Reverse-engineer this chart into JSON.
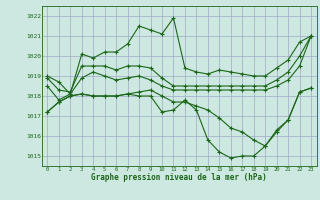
{
  "hours": [
    0,
    1,
    2,
    3,
    4,
    5,
    6,
    7,
    8,
    9,
    10,
    11,
    12,
    13,
    14,
    15,
    16,
    17,
    18,
    19,
    20,
    21,
    22,
    23
  ],
  "line_upper": [
    1019.0,
    1018.7,
    1018.1,
    1020.1,
    1019.9,
    1020.2,
    1020.2,
    1020.6,
    1021.5,
    1021.3,
    1021.1,
    1021.9,
    1019.4,
    1019.2,
    1019.1,
    1019.3,
    1019.2,
    1019.1,
    1019.0,
    1019.0,
    1019.4,
    1019.8,
    1020.7,
    1021.0
  ],
  "line_mid_upper": [
    1018.9,
    1018.3,
    1018.2,
    1019.5,
    1019.5,
    1019.5,
    1019.3,
    1019.5,
    1019.5,
    1019.4,
    1018.9,
    1018.5,
    1018.5,
    1018.5,
    1018.5,
    1018.5,
    1018.5,
    1018.5,
    1018.5,
    1018.5,
    1018.8,
    1019.2,
    1020.0,
    1021.0
  ],
  "line_mean": [
    1018.5,
    1017.8,
    1018.1,
    1018.9,
    1019.2,
    1019.0,
    1018.8,
    1018.9,
    1019.0,
    1018.8,
    1018.5,
    1018.3,
    1018.3,
    1018.3,
    1018.3,
    1018.3,
    1018.3,
    1018.3,
    1018.3,
    1018.3,
    1018.5,
    1018.8,
    1019.5,
    1021.0
  ],
  "line_mid_lower": [
    1017.2,
    1017.7,
    1018.0,
    1018.1,
    1018.0,
    1018.0,
    1018.0,
    1018.1,
    1018.2,
    1018.3,
    1018.0,
    1017.7,
    1017.7,
    1017.5,
    1017.3,
    1016.9,
    1016.4,
    1016.2,
    1015.8,
    1015.5,
    1016.3,
    1016.8,
    1018.2,
    1018.4
  ],
  "line_lower": [
    1017.2,
    1017.7,
    1018.0,
    1018.1,
    1018.0,
    1018.0,
    1018.0,
    1018.1,
    1018.0,
    1018.0,
    1017.2,
    1017.3,
    1017.8,
    1017.3,
    1015.8,
    1015.2,
    1014.9,
    1015.0,
    1015.0,
    1015.5,
    1016.2,
    1016.8,
    1018.2,
    1018.4
  ],
  "ylim_min": 1014.5,
  "ylim_max": 1022.5,
  "yticks": [
    1015,
    1016,
    1017,
    1018,
    1019,
    1020,
    1021,
    1022
  ],
  "bg_color": "#cde8e0",
  "grid_color": "#a0a8c8",
  "line_color": "#1a6618",
  "xlabel": "Graphe pression niveau de la mer (hPa)"
}
